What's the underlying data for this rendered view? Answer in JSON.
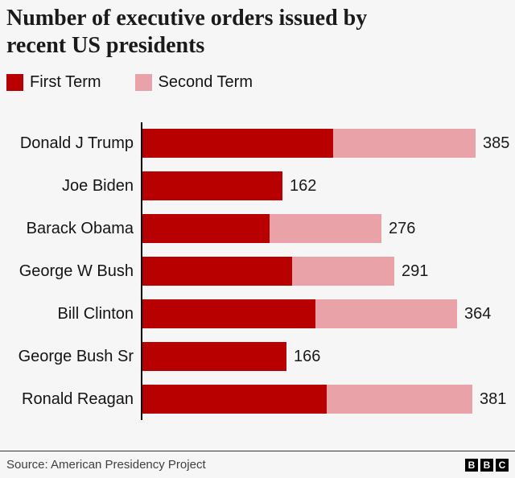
{
  "title_lines": [
    "Number of executive orders issued by",
    "recent US presidents"
  ],
  "legend": {
    "items": [
      {
        "label": "First Term",
        "color": "#b80000"
      },
      {
        "label": "Second Term",
        "color": "#e9a2a7"
      }
    ]
  },
  "chart_data": {
    "type": "bar",
    "orientation": "horizontal",
    "stacked": true,
    "title": "Number of executive orders issued by recent US presidents",
    "categories": [
      "Donald J Trump",
      "Joe Biden",
      "Barack Obama",
      "George W Bush",
      "Bill Clinton",
      "George Bush Sr",
      "Ronald Reagan"
    ],
    "series": [
      {
        "name": "First Term",
        "color": "#b80000",
        "values": [
          220,
          162,
          147,
          173,
          200,
          166,
          213
        ]
      },
      {
        "name": "Second Term",
        "color": "#e9a2a7",
        "values": [
          165,
          0,
          129,
          118,
          164,
          0,
          168
        ]
      }
    ],
    "totals": [
      385,
      162,
      276,
      291,
      364,
      166,
      381
    ],
    "value_labels": [
      "385",
      "162",
      "276",
      "291",
      "364",
      "166",
      "381"
    ],
    "xlim": [
      0,
      400
    ],
    "grid": false,
    "legend_position": "top"
  },
  "footer": {
    "source": "Source: American Presidency Project",
    "logo_letters": [
      "B",
      "B",
      "C"
    ]
  },
  "colors": {
    "background": "#f6f6f6",
    "first_term": "#b80000",
    "second_term": "#e9a2a7",
    "axis": "#000000",
    "text": "#141414"
  }
}
